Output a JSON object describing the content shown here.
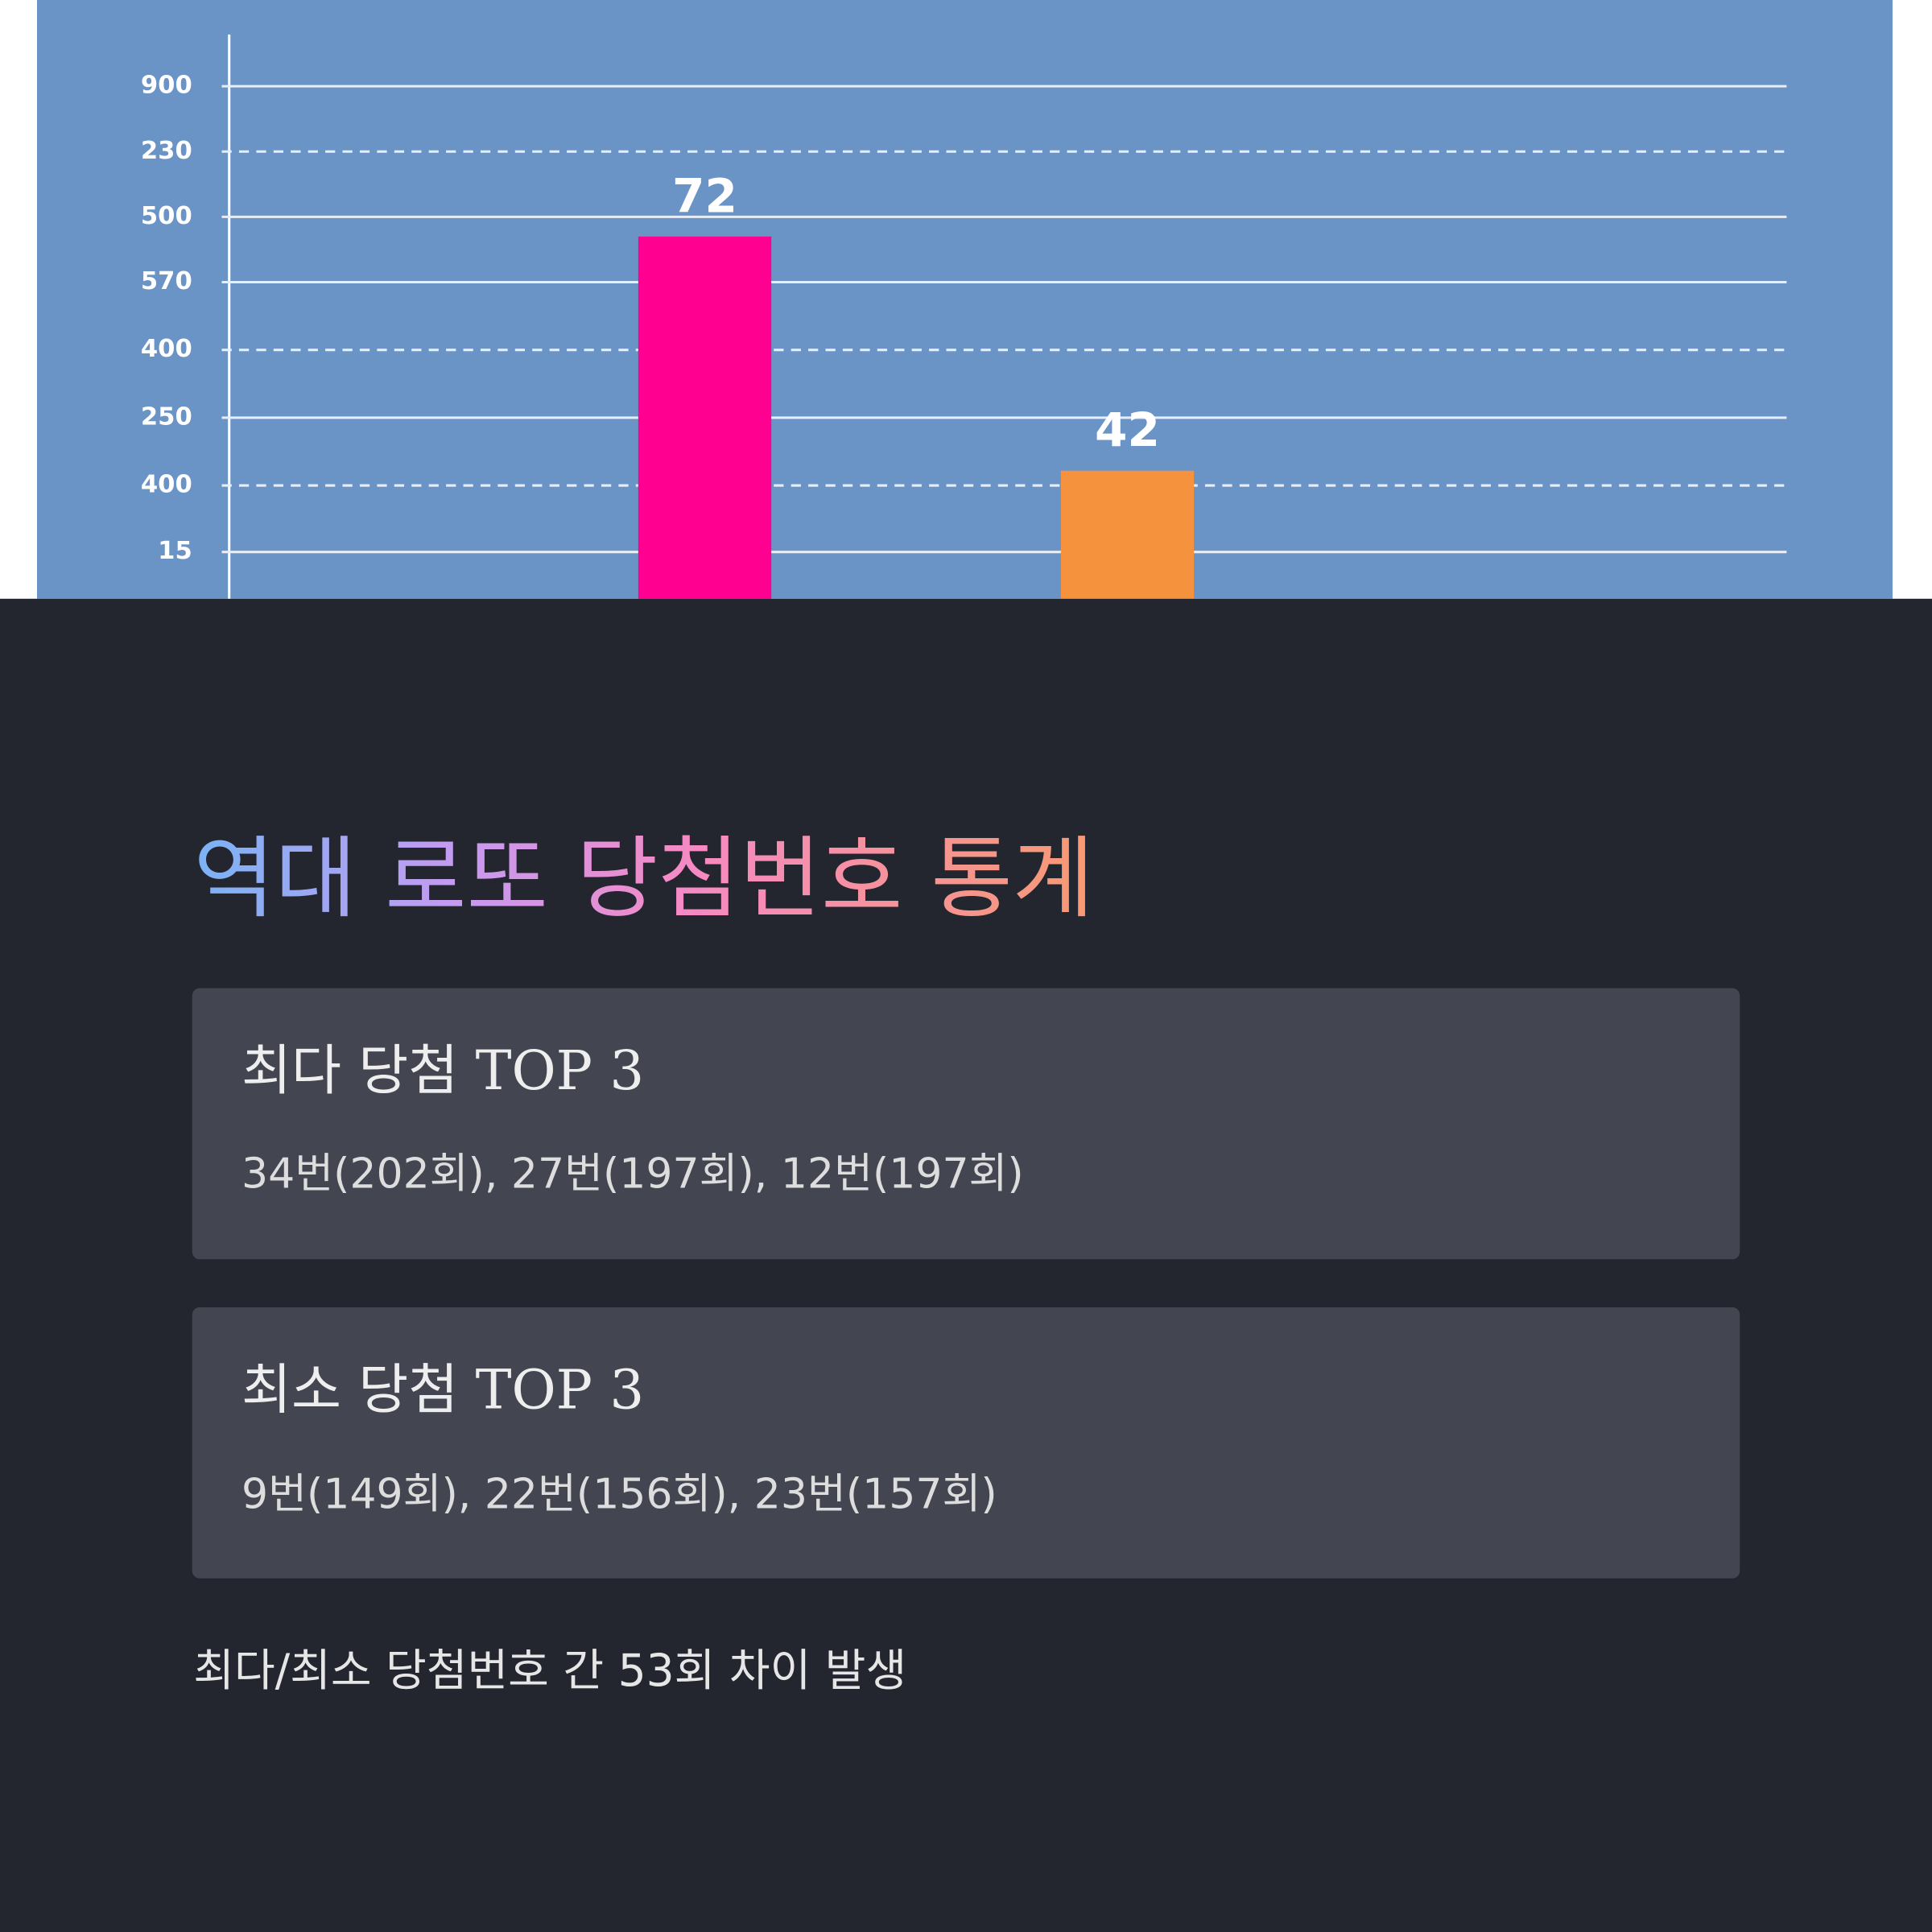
{
  "chart_image": {
    "y_axis_labels": [
      900,
      230,
      500,
      570,
      400,
      250,
      400,
      15
    ],
    "bars": [
      {
        "value": 72,
        "color": "#ff0090"
      },
      {
        "value": 42,
        "color": "#f5923e"
      }
    ]
  },
  "title": "역대 로또 당첨번호 통계",
  "cards": [
    {
      "heading": "최다 당첨 TOP 3",
      "text": "34번(202회), 27번(197회), 12번(197회)"
    },
    {
      "heading": "최소 당첨 TOP 3",
      "text": "9번(149회), 22번(156회), 23번(157회)"
    }
  ],
  "footer": "최다/최소 당첨번호 간 53회 차이 발생"
}
